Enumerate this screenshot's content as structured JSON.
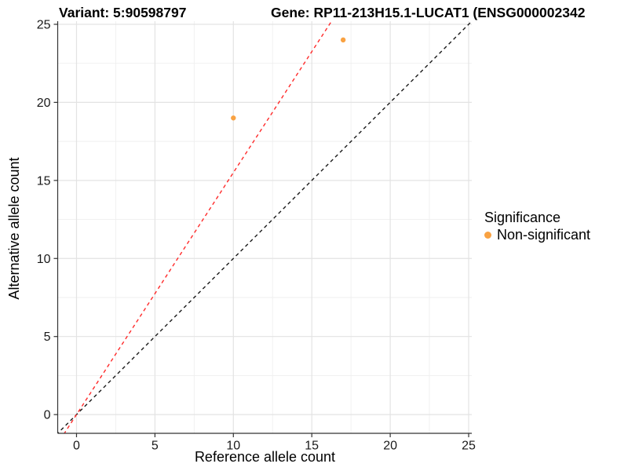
{
  "chart_data": {
    "type": "scatter",
    "title_left": "Variant: 5:90598797",
    "title_right": "Gene: RP11-213H15.1-LUCAT1 (ENSG000002342",
    "xlabel": "Reference allele count",
    "ylabel": "Alternative allele count",
    "xlim": [
      -1.2,
      25.2
    ],
    "ylim": [
      -1.2,
      25.2
    ],
    "x_ticks": [
      0,
      5,
      10,
      15,
      20,
      25
    ],
    "y_ticks": [
      0,
      5,
      10,
      15,
      20,
      25
    ],
    "x_minor_ticks": [
      2.5,
      7.5,
      12.5,
      17.5,
      22.5
    ],
    "y_minor_ticks": [
      2.5,
      7.5,
      12.5,
      17.5,
      22.5
    ],
    "grid": true,
    "series": [
      {
        "name": "Non-significant",
        "color": "#F9A242",
        "points": [
          {
            "x": 10,
            "y": 19
          },
          {
            "x": 17,
            "y": 24
          }
        ]
      }
    ],
    "reference_lines": [
      {
        "name": "identity-line",
        "slope": 1.0,
        "intercept": 0,
        "color": "#1a1a1a",
        "style": "dashed"
      },
      {
        "name": "allelic-ratio-line",
        "slope": 1.55,
        "intercept": 0,
        "color": "#FF2A2A",
        "style": "dashed"
      }
    ],
    "legend": {
      "title": "Significance",
      "position": "right",
      "entries": [
        {
          "label": "Non-significant",
          "color": "#F9A242"
        }
      ]
    }
  },
  "colors": {
    "background": "#ffffff",
    "grid_major": "#e3e3e3",
    "grid_minor": "#efefef",
    "axis_line": "#333333",
    "tick_label": "#1a1a1a",
    "point": "#F9A242"
  }
}
